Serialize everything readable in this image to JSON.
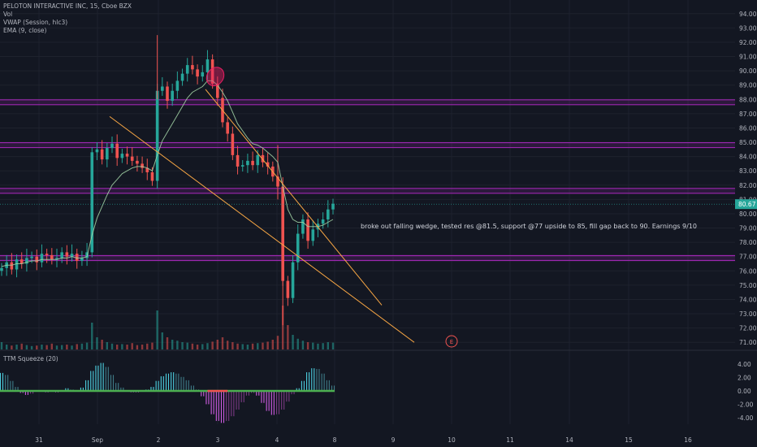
{
  "legend": {
    "symbol_line": "PELOTON INTERACTIVE INC, 15, Cboe BZX",
    "vol_label": "Vol",
    "vwap_label": "VWAP (Session, hlc3)",
    "ema_label": "EMA (9, close)"
  },
  "indicator": {
    "label": "TTM Squeeze (20)"
  },
  "annotation": "broke out falling wedge, tested res @81.5, support @77 upside to 85, fill gap back to 90. Earnings 9/10",
  "earnings_marker": "E",
  "colors": {
    "background": "#131722",
    "up": "#26a69a",
    "down": "#ef5350",
    "level_line": "#9c27b0",
    "trend_line": "#f7a644",
    "squeeze_up": "#4dd0e1",
    "squeeze_down": "#d05ce3",
    "squeeze_zero": "#4caf50",
    "price_tag": "#26a69a"
  },
  "chart_data": {
    "type": "candlestick",
    "price_axis": {
      "ylim": [
        70.5,
        94.5
      ],
      "ticks": [
        "94.00",
        "93.00",
        "92.00",
        "91.00",
        "90.00",
        "89.00",
        "88.00",
        "87.00",
        "86.00",
        "85.00",
        "84.00",
        "83.00",
        "82.00",
        "81.00",
        "80.00",
        "79.00",
        "78.00",
        "77.00",
        "76.00",
        "75.00",
        "74.00",
        "73.00",
        "72.00",
        "71.00"
      ],
      "last_price": "80.67"
    },
    "indicator_axis": {
      "ylim": [
        -5,
        5
      ],
      "ticks": [
        "4.00",
        "2.00",
        "0.00",
        "-2.00",
        "-4.00"
      ]
    },
    "x_axis": {
      "ticks": [
        "31",
        "Sep",
        "2",
        "3",
        "4",
        "8",
        "9",
        "10",
        "11",
        "14",
        "15",
        "16"
      ]
    },
    "horizontal_levels": [
      87.8,
      84.8,
      81.6,
      76.9
    ],
    "trend_lines": [
      {
        "from": [
          "Aug 31 (late)",
          86.8
        ],
        "to": [
          "Sep 9",
          71.0
        ]
      },
      {
        "from": [
          "Sep 2 (late)",
          88.6
        ],
        "to": [
          "Sep 9 (early)",
          73.6
        ]
      }
    ],
    "price_series": [
      76.2,
      76.6,
      76.1,
      76.8,
      76.5,
      76.9,
      77.0,
      76.6,
      77.2,
      77.1,
      76.8,
      76.9,
      77.3,
      77.0,
      77.2,
      76.7,
      76.9,
      77.3,
      84.3,
      84.5,
      83.8,
      84.6,
      84.9,
      83.9,
      84.2,
      84.0,
      83.7,
      83.5,
      83.2,
      82.9,
      82.3,
      88.6,
      88.9,
      87.9,
      88.6,
      89.3,
      89.8,
      90.4,
      90.1,
      89.6,
      89.9,
      90.8,
      89.1,
      88.1,
      86.4,
      85.6,
      84.1,
      83.3,
      83.4,
      83.7,
      83.4,
      84.1,
      83.6,
      83.3,
      82.6,
      81.9,
      75.3,
      74.1,
      76.6,
      78.6,
      79.6,
      78.1,
      78.9,
      79.3,
      79.6,
      80.3,
      80.7
    ],
    "ema9": [
      76.3,
      76.4,
      76.4,
      76.5,
      76.5,
      76.6,
      76.7,
      76.7,
      76.8,
      76.8,
      76.8,
      76.8,
      76.9,
      76.9,
      77.0,
      76.9,
      76.9,
      77.0,
      78.5,
      79.7,
      80.5,
      81.3,
      82.0,
      82.4,
      82.8,
      83.0,
      83.2,
      83.3,
      83.3,
      83.2,
      83.0,
      84.1,
      85.1,
      85.7,
      86.3,
      86.9,
      87.5,
      88.1,
      88.5,
      88.7,
      88.9,
      89.3,
      89.3,
      89.0,
      88.5,
      87.9,
      87.1,
      86.3,
      85.8,
      85.3,
      84.9,
      84.8,
      84.6,
      84.3,
      84.0,
      83.6,
      81.9,
      80.3,
      79.6,
      79.4,
      79.4,
      79.1,
      79.1,
      79.1,
      79.2,
      79.4,
      79.6
    ],
    "squeeze_momentum": [
      2.7,
      2.4,
      1.5,
      0.6,
      -0.3,
      -0.6,
      -0.4,
      0.1,
      -0.1,
      -0.2,
      -0.1,
      -0.2,
      0.1,
      0.4,
      0.2,
      -0.1,
      0.5,
      1.6,
      3.0,
      3.8,
      4.2,
      3.6,
      2.4,
      1.2,
      0.5,
      0.1,
      -0.2,
      -0.2,
      -0.1,
      0.2,
      0.6,
      1.5,
      2.2,
      2.6,
      2.8,
      2.6,
      2.1,
      1.6,
      0.8,
      0.2,
      -0.8,
      -2.0,
      -3.5,
      -4.5,
      -4.8,
      -4.5,
      -3.8,
      -2.8,
      -1.7,
      -0.7,
      -0.3,
      -0.7,
      -1.8,
      -3.0,
      -3.6,
      -3.5,
      -2.8,
      -1.6,
      -0.5,
      0.4,
      1.5,
      2.8,
      3.4,
      3.3,
      2.6,
      1.6,
      0.8
    ],
    "volume_relative": [
      0.15,
      0.1,
      0.08,
      0.1,
      0.12,
      0.09,
      0.07,
      0.08,
      0.1,
      0.09,
      0.12,
      0.08,
      0.09,
      0.1,
      0.08,
      0.11,
      0.12,
      0.14,
      0.55,
      0.25,
      0.2,
      0.15,
      0.12,
      0.1,
      0.11,
      0.1,
      0.13,
      0.09,
      0.1,
      0.12,
      0.14,
      0.8,
      0.35,
      0.25,
      0.2,
      0.18,
      0.15,
      0.14,
      0.12,
      0.1,
      0.11,
      0.13,
      0.16,
      0.2,
      0.25,
      0.18,
      0.15,
      0.12,
      0.11,
      0.1,
      0.12,
      0.13,
      0.14,
      0.16,
      0.2,
      0.28,
      0.9,
      0.5,
      0.3,
      0.22,
      0.18,
      0.15,
      0.14,
      0.12,
      0.13,
      0.15,
      0.14
    ]
  }
}
